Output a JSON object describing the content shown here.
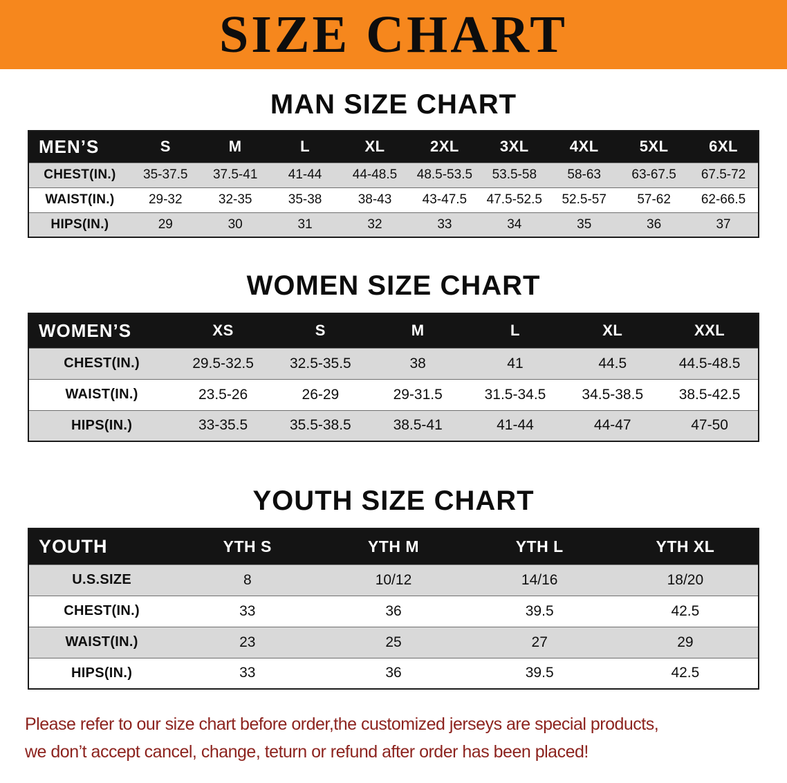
{
  "banner": {
    "title": "SIZE CHART"
  },
  "colors": {
    "banner_bg": "#f6871d",
    "header_bg": "#141414",
    "row_alt_bg": "#d9d9d9",
    "footer_text": "#8d241f"
  },
  "sections": [
    {
      "heading": "MAN SIZE CHART",
      "table": {
        "corner": "MEN’S",
        "columns": [
          "S",
          "M",
          "L",
          "XL",
          "2XL",
          "3XL",
          "4XL",
          "5XL",
          "6XL"
        ],
        "rows": [
          {
            "label": "CHEST(IN.)",
            "values": [
              "35-37.5",
              "37.5-41",
              "41-44",
              "44-48.5",
              "48.5-53.5",
              "53.5-58",
              "58-63",
              "63-67.5",
              "67.5-72"
            ]
          },
          {
            "label": "WAIST(IN.)",
            "values": [
              "29-32",
              "32-35",
              "35-38",
              "38-43",
              "43-47.5",
              "47.5-52.5",
              "52.5-57",
              "57-62",
              "62-66.5"
            ]
          },
          {
            "label": "HIPS(IN.)",
            "values": [
              "29",
              "30",
              "31",
              "32",
              "33",
              "34",
              "35",
              "36",
              "37"
            ]
          }
        ]
      }
    },
    {
      "heading": "WOMEN SIZE CHART",
      "table": {
        "corner": "WOMEN’S",
        "columns": [
          "XS",
          "S",
          "M",
          "L",
          "XL",
          "XXL"
        ],
        "rows": [
          {
            "label": "CHEST(IN.)",
            "values": [
              "29.5-32.5",
              "32.5-35.5",
              "38",
              "41",
              "44.5",
              "44.5-48.5"
            ]
          },
          {
            "label": "WAIST(IN.)",
            "values": [
              "23.5-26",
              "26-29",
              "29-31.5",
              "31.5-34.5",
              "34.5-38.5",
              "38.5-42.5"
            ]
          },
          {
            "label": "HIPS(IN.)",
            "values": [
              "33-35.5",
              "35.5-38.5",
              "38.5-41",
              "41-44",
              "44-47",
              "47-50"
            ]
          }
        ]
      }
    },
    {
      "heading": "YOUTH SIZE CHART",
      "table": {
        "corner": "YOUTH",
        "columns": [
          "YTH S",
          "YTH M",
          "YTH L",
          "YTH XL"
        ],
        "rows": [
          {
            "label": "U.S.SIZE",
            "values": [
              "8",
              "10/12",
              "14/16",
              "18/20"
            ]
          },
          {
            "label": "CHEST(IN.)",
            "values": [
              "33",
              "36",
              "39.5",
              "42.5"
            ]
          },
          {
            "label": "WAIST(IN.)",
            "values": [
              "23",
              "25",
              "27",
              "29"
            ]
          },
          {
            "label": "HIPS(IN.)",
            "values": [
              "33",
              "36",
              "39.5",
              "42.5"
            ]
          }
        ]
      }
    }
  ],
  "footer": {
    "line1": "Please refer to our size chart before order,the customized jerseys are special products,",
    "line2": "we don’t accept cancel, change, teturn or refund after order has been placed!"
  }
}
